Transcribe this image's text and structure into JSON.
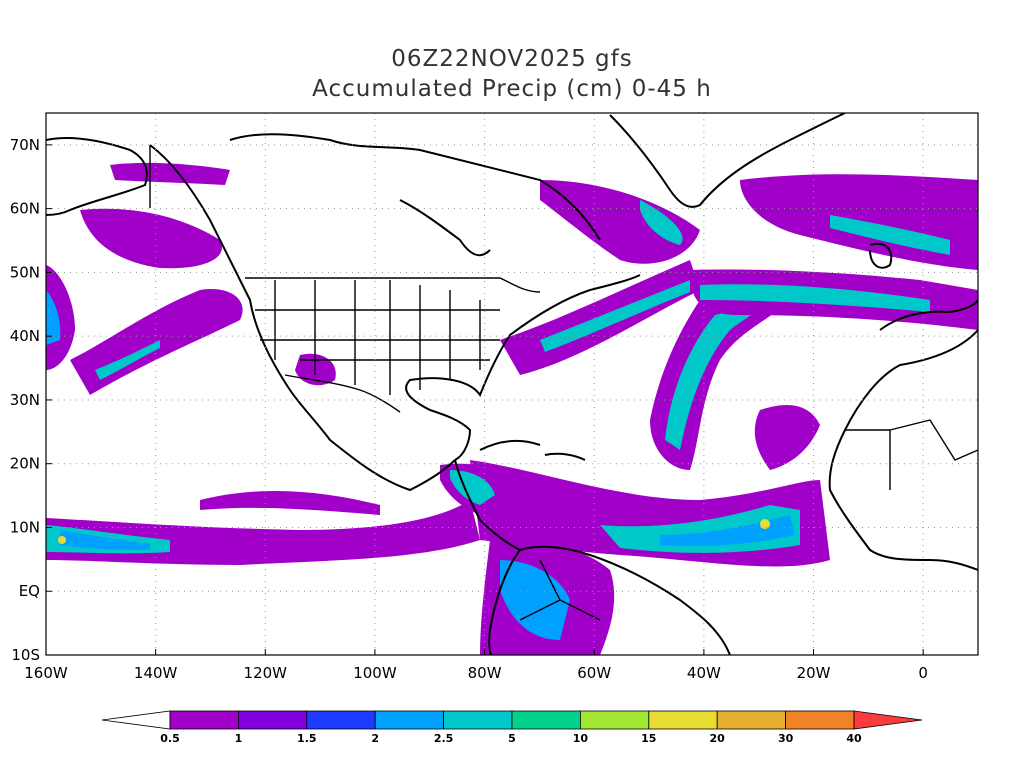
{
  "title": {
    "line1": "06Z22NOV2025 gfs",
    "line2": "Accumulated Precip (cm) 0-45 h"
  },
  "map": {
    "lon_range": [
      -160,
      10
    ],
    "lat_range": [
      -10,
      75
    ],
    "gridlines": "dotted",
    "lat_labels": [
      "70N",
      "60N",
      "50N",
      "40N",
      "30N",
      "20N",
      "10N",
      "EQ",
      "10S"
    ],
    "lat_values": [
      70,
      60,
      50,
      40,
      30,
      20,
      10,
      0,
      -10
    ],
    "lon_labels": [
      "160W",
      "140W",
      "120W",
      "100W",
      "80W",
      "60W",
      "40W",
      "20W",
      "0"
    ],
    "lon_values": [
      -160,
      -140,
      -120,
      -100,
      -80,
      -60,
      -40,
      -20,
      0
    ],
    "land_outline_color": "#000000"
  },
  "colorbar": {
    "labels": [
      "0.5",
      "1",
      "1.5",
      "2",
      "2.5",
      "5",
      "10",
      "15",
      "20",
      "30",
      "40"
    ],
    "colors": [
      "#ffffff",
      "#a000c8",
      "#8200dc",
      "#1e3cff",
      "#00a0ff",
      "#00c8c8",
      "#00d28c",
      "#a0e632",
      "#e6dc32",
      "#e6af2d",
      "#f08228",
      "#fa3c3c"
    ]
  }
}
